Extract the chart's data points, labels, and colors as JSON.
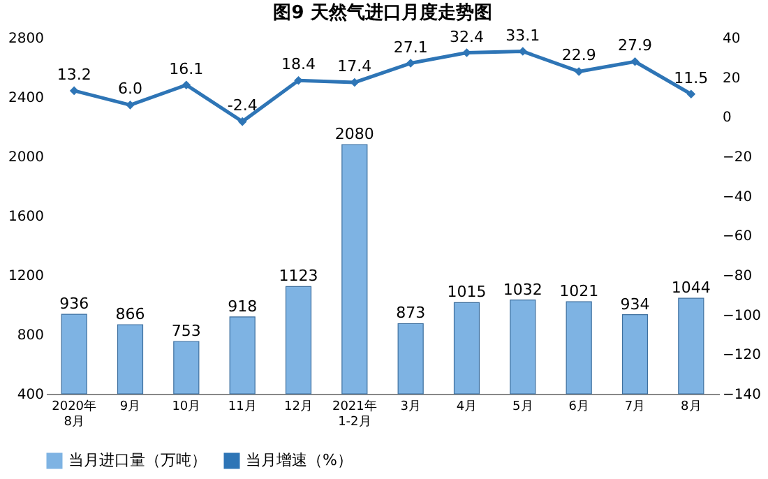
{
  "chart_data": {
    "type": "bar",
    "title": "图9  天然气进口月度走势图",
    "categories": [
      "2020年\n8月",
      "9月",
      "10月",
      "11月",
      "12月",
      "2021年\n1-2月",
      "3月",
      "4月",
      "5月",
      "6月",
      "7月",
      "8月"
    ],
    "series": [
      {
        "name": "当月进口量（万吨）",
        "color": "#7eb3e3",
        "values": [
          936,
          866,
          753,
          918,
          1123,
          2080,
          873,
          1015,
          1032,
          1021,
          934,
          1044
        ]
      },
      {
        "name": "当月增速（%）",
        "type": "line",
        "axis": "y2",
        "color": "#2e75b6",
        "values": [
          13.2,
          6.0,
          16.1,
          -2.4,
          18.4,
          17.4,
          27.1,
          32.4,
          33.1,
          22.9,
          27.9,
          11.5
        ]
      }
    ],
    "value_labels": [
      [
        "936",
        "866",
        "753",
        "918",
        "1123",
        "2080",
        "873",
        "1015",
        "1032",
        "1021",
        "934",
        "1044"
      ],
      [
        "13.2",
        "6.0",
        "16.1",
        "-2.4",
        "18.4",
        "17.4",
        "27.1",
        "32.4",
        "33.1",
        "22.9",
        "27.9",
        "11.5"
      ]
    ],
    "ylim": [
      400,
      2800
    ],
    "yticks": [
      400,
      800,
      1200,
      1600,
      2000,
      2400,
      2800
    ],
    "y2lim": [
      -140,
      40
    ],
    "y2ticks": [
      -140,
      -120,
      -100,
      -80,
      -60,
      -40,
      -20,
      0,
      20,
      40
    ],
    "marker": "diamond",
    "line_style": "solid",
    "grid": false,
    "legend": "bottom"
  }
}
